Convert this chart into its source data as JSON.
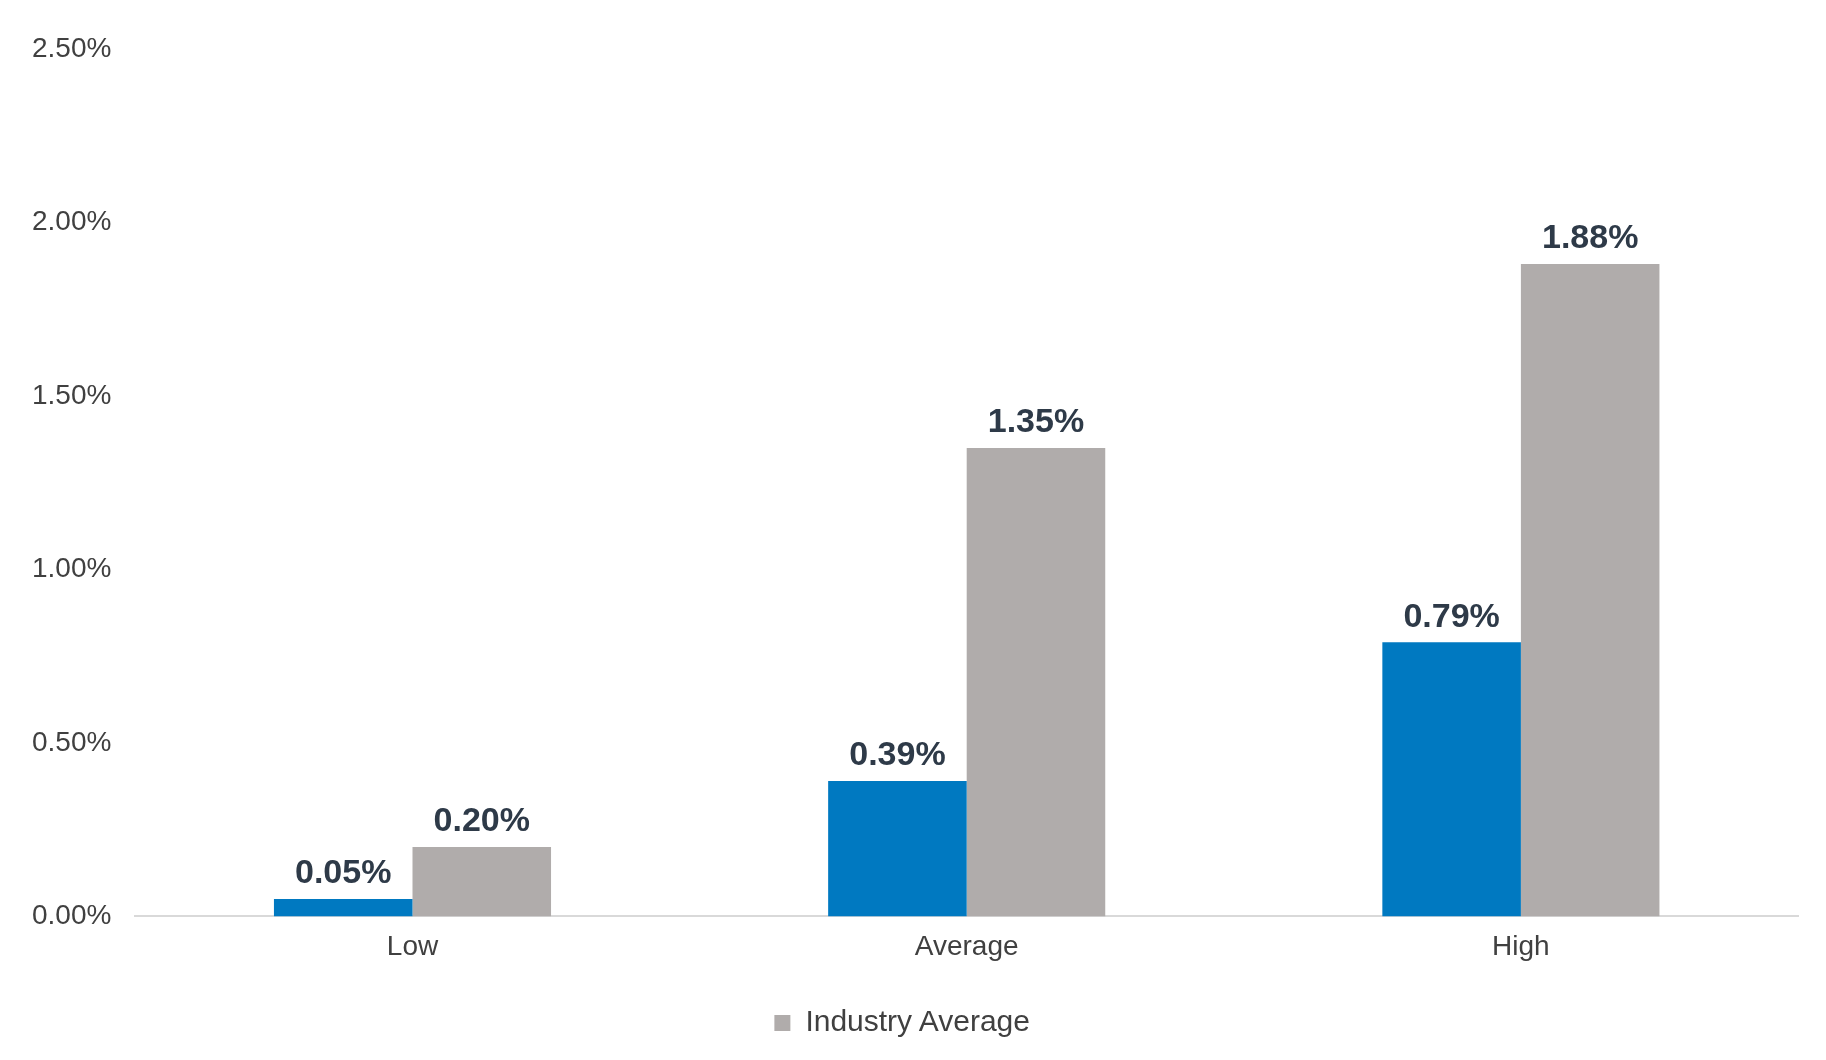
{
  "chart_data": {
    "type": "bar",
    "categories": [
      "Low",
      "Average",
      "High"
    ],
    "series": [
      {
        "color": "#0079c1",
        "values": [
          0.05,
          0.39,
          0.79
        ],
        "value_labels": [
          "0.05%",
          "0.39%",
          "0.79%"
        ]
      },
      {
        "name": "Industry Average",
        "color": "#b0acab",
        "values": [
          0.2,
          1.35,
          1.88
        ],
        "value_labels": [
          "0.20%",
          "1.35%",
          "1.88%"
        ]
      }
    ],
    "ylim": [
      0,
      2.5
    ],
    "yticks": [
      {
        "value": 0,
        "label": "0.00%"
      },
      {
        "value": 0.5,
        "label": "0.50%"
      },
      {
        "value": 1,
        "label": "1.00%"
      },
      {
        "value": 1.5,
        "label": "1.50%"
      },
      {
        "value": 2,
        "label": "2.00%"
      },
      {
        "value": 2.5,
        "label": "2.50%"
      }
    ],
    "grid": false,
    "legend": "bottom"
  }
}
